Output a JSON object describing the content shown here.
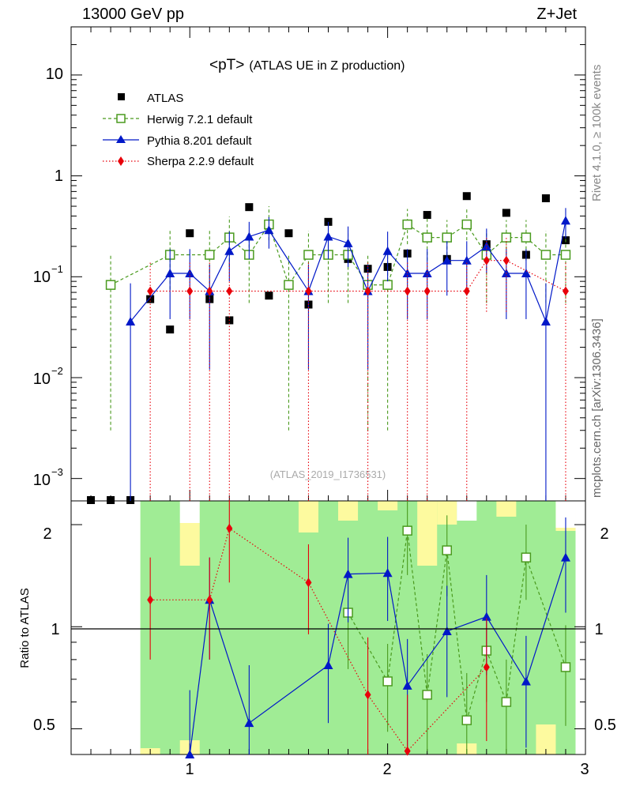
{
  "header": {
    "left": "13000 GeV pp",
    "right": "Z+Jet"
  },
  "side_labels": {
    "rivet": "Rivet 4.1.0, ≥ 100k events",
    "mcplots": "mcplots.cern.ch [arXiv:1306.3436]"
  },
  "chart_data": [
    {
      "type": "scatter",
      "panel": "main",
      "title_main": "<pT>",
      "title_sub": "(ATLAS UE in Z production)",
      "watermark": "(ATLAS_2019_I1736531)",
      "yscale": "log",
      "ylim": [
        0.0006,
        30
      ],
      "xlim": [
        0.4,
        3.0
      ],
      "ytick_labels": {
        "t10": "10",
        "t1": "1",
        "t01": "10",
        "t01_exp": "−1",
        "t001": "10",
        "t001_exp": "−2",
        "t0001": "10",
        "t0001_exp": "−3"
      },
      "legend_position": "top-left",
      "series": [
        {
          "name": "ATLAS",
          "color": "#000000",
          "marker": "square",
          "x": [
            0.5,
            0.6,
            0.7,
            0.8,
            0.9,
            1.0,
            1.1,
            1.2,
            1.3,
            1.4,
            1.5,
            1.6,
            1.7,
            1.8,
            1.9,
            2.0,
            2.1,
            2.2,
            2.3,
            2.4,
            2.5,
            2.6,
            2.7,
            2.8,
            2.9
          ],
          "y": [
            0.0006,
            0.0006,
            0.0006,
            0.06,
            0.03,
            0.27,
            0.06,
            0.037,
            0.49,
            0.065,
            0.27,
            0.053,
            0.35,
            0.15,
            0.12,
            0.125,
            0.17,
            0.41,
            0.15,
            0.63,
            0.21,
            0.43,
            0.165,
            0.6,
            0.23
          ]
        },
        {
          "name": "Herwig 7.2.1 default",
          "color": "#4a9a1e",
          "marker": "open-square",
          "line": "dashed",
          "x": [
            0.6,
            0.9,
            1.1,
            1.2,
            1.3,
            1.4,
            1.5,
            1.6,
            1.7,
            1.8,
            1.9,
            2.0,
            2.1,
            2.2,
            2.3,
            2.4,
            2.5,
            2.6,
            2.7,
            2.8,
            2.9
          ],
          "y": [
            0.083,
            0.165,
            0.165,
            0.245,
            0.165,
            0.33,
            0.083,
            0.165,
            0.165,
            0.165,
            0.083,
            0.083,
            0.33,
            0.245,
            0.245,
            0.33,
            0.165,
            0.245,
            0.245,
            0.165,
            0.165
          ],
          "yerr_lo": [
            0.08,
            0.09,
            0.09,
            0.12,
            0.11,
            0.1,
            0.08,
            0.11,
            0.11,
            0.11,
            0.08,
            0.08,
            0.12,
            0.1,
            0.1,
            0.1,
            0.11,
            0.1,
            0.1,
            0.11,
            0.11
          ],
          "yerr_hi": [
            0.085,
            0.12,
            0.12,
            0.15,
            0.12,
            0.17,
            0.085,
            0.12,
            0.12,
            0.12,
            0.085,
            0.085,
            0.14,
            0.14,
            0.12,
            0.15,
            0.12,
            0.12,
            0.12,
            0.12,
            0.12
          ]
        },
        {
          "name": "Pythia 8.201 default",
          "color": "#0018c8",
          "marker": "triangle",
          "line": "solid",
          "x": [
            0.7,
            0.9,
            1.0,
            1.1,
            1.2,
            1.3,
            1.4,
            1.6,
            1.7,
            1.8,
            1.9,
            2.0,
            2.1,
            2.2,
            2.3,
            2.4,
            2.5,
            2.6,
            2.7,
            2.8,
            2.9
          ],
          "y": [
            0.036,
            0.108,
            0.108,
            0.072,
            0.18,
            0.25,
            0.29,
            0.072,
            0.25,
            0.215,
            0.072,
            0.18,
            0.108,
            0.108,
            0.145,
            0.145,
            0.2,
            0.108,
            0.108,
            0.036,
            0.36
          ],
          "yerr_lo": [
            0.036,
            0.07,
            0.07,
            0.06,
            0.09,
            0.1,
            0.1,
            0.06,
            0.1,
            0.09,
            0.06,
            0.09,
            0.07,
            0.07,
            0.08,
            0.08,
            0.09,
            0.07,
            0.07,
            0.036,
            0.12
          ],
          "yerr_hi": [
            0.05,
            0.08,
            0.08,
            0.06,
            0.1,
            0.1,
            0.1,
            0.06,
            0.1,
            0.1,
            0.06,
            0.1,
            0.08,
            0.08,
            0.08,
            0.08,
            0.1,
            0.08,
            0.08,
            0.05,
            0.12
          ]
        },
        {
          "name": "Sherpa 2.2.9 default",
          "color": "#e8000a",
          "marker": "diamond",
          "line": "dotted",
          "x": [
            0.8,
            1.0,
            1.1,
            1.2,
            1.6,
            1.9,
            2.1,
            2.2,
            2.4,
            2.5,
            2.6,
            2.9
          ],
          "y": [
            0.072,
            0.072,
            0.072,
            0.072,
            0.072,
            0.072,
            0.072,
            0.072,
            0.072,
            0.145,
            0.145,
            0.072
          ],
          "yerr_lo": [
            0.072,
            0.072,
            0.072,
            0.072,
            0.072,
            0.072,
            0.072,
            0.072,
            0.072,
            0.1,
            0.1,
            0.072
          ],
          "yerr_hi": [
            0.07,
            0.07,
            0.07,
            0.07,
            0.07,
            0.07,
            0.07,
            0.07,
            0.07,
            0.1,
            0.1,
            0.07
          ]
        }
      ]
    },
    {
      "type": "scatter",
      "panel": "ratio",
      "ylabel": "Ratio to ATLAS",
      "xlim": [
        0.4,
        3.0
      ],
      "ylim": [
        0.42,
        2.35
      ],
      "reference_line": 1,
      "xtick_labels": [
        "1",
        "2",
        "3"
      ],
      "ytick_labels": [
        "0.5",
        "1",
        "2"
      ],
      "band_inner_color": "#a0ec95",
      "band_outer_color": "#fdfa9f",
      "series": [
        {
          "name": "Herwig 7.2.1 default",
          "color": "#4a9a1e",
          "x": [
            1.8,
            2.0,
            2.1,
            2.2,
            2.3,
            2.4,
            2.5,
            2.6,
            2.7,
            2.9
          ],
          "y": [
            1.1,
            0.69,
            1.92,
            0.63,
            1.68,
            0.53,
            0.85,
            0.6,
            1.6,
            0.76
          ],
          "yerr": [
            0.35,
            0.2,
            0.5,
            0.2,
            0.45,
            0.2,
            0.25,
            0.2,
            0.4,
            0.25
          ]
        },
        {
          "name": "Pythia 8.201 default",
          "color": "#0018c8",
          "x": [
            1.0,
            1.1,
            1.3,
            1.7,
            1.8,
            2.0,
            2.1,
            2.3,
            2.5,
            2.7,
            2.9
          ],
          "y": [
            0.4,
            1.2,
            0.52,
            0.77,
            1.43,
            1.44,
            0.67,
            0.97,
            1.07,
            0.69,
            1.6
          ],
          "yerr": [
            0.25,
            0.4,
            0.25,
            0.25,
            0.4,
            0.4,
            0.25,
            0.35,
            0.35,
            0.25,
            0.5
          ]
        },
        {
          "name": "Sherpa 2.2.9 default",
          "color": "#e8000a",
          "x": [
            0.8,
            1.1,
            1.2,
            1.6,
            1.9,
            2.1,
            2.5
          ],
          "y": [
            1.2,
            1.2,
            1.95,
            1.35,
            0.63,
            0.43,
            0.76
          ],
          "yerr": [
            0.4,
            0.4,
            0.6,
            0.4,
            0.3,
            0.2,
            0.3
          ]
        }
      ]
    }
  ]
}
